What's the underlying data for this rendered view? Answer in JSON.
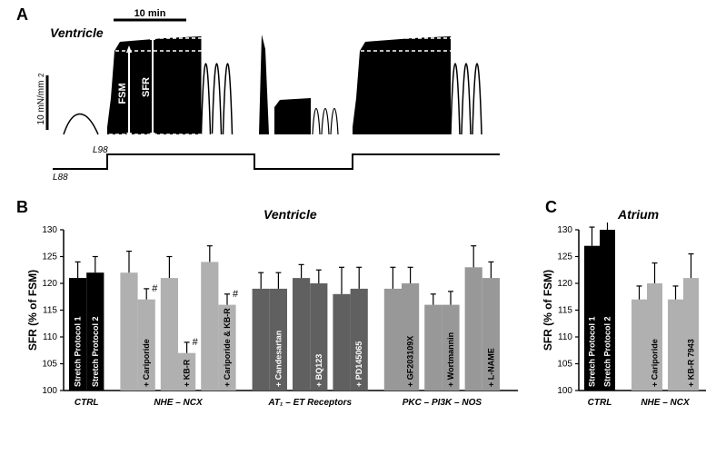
{
  "panelA": {
    "label": "A",
    "title": "Ventricle",
    "scalebar_time": "10 min",
    "scalebar_force": "10 mN/mm²",
    "trace_color": "#000000",
    "fsm_label": "FSM",
    "sfr_label": "SFR",
    "length_labels": {
      "l98": "L98",
      "l88": "L88"
    },
    "background": "#ffffff"
  },
  "panelB": {
    "label": "B",
    "title": "Ventricle",
    "y_label": "SFR (% of FSM)",
    "ylim": [
      100,
      130
    ],
    "ytick_step": 5,
    "yticks": [
      100,
      105,
      110,
      115,
      120,
      125,
      130
    ],
    "axis_color": "#000000",
    "label_fontsize": 12,
    "tick_fontsize": 10,
    "groups": [
      {
        "name": "CTRL",
        "bars": [
          {
            "label": "Stretch Protocol 1",
            "value": 121,
            "err": 3.0,
            "color": "#000000",
            "text_color": "#ffffff",
            "sig": ""
          },
          {
            "label": "Stretch Protocol 2",
            "value": 122,
            "err": 3.0,
            "color": "#000000",
            "text_color": "#ffffff",
            "sig": ""
          }
        ]
      },
      {
        "name": "NHE – NCX",
        "bars": [
          {
            "label": "",
            "value": 122,
            "err": 4.0,
            "color": "#b0b0b0",
            "text_color": "#000000",
            "sig": ""
          },
          {
            "label": "+ Cariporide",
            "value": 117,
            "err": 2.0,
            "color": "#b0b0b0",
            "text_color": "#000000",
            "sig": "#"
          },
          {
            "label": "",
            "value": 121,
            "err": 4.0,
            "color": "#b0b0b0",
            "text_color": "#000000",
            "sig": ""
          },
          {
            "label": "+ KB-R",
            "value": 107,
            "err": 2.0,
            "color": "#b0b0b0",
            "text_color": "#000000",
            "sig": "#"
          },
          {
            "label": "",
            "value": 124,
            "err": 3.0,
            "color": "#b0b0b0",
            "text_color": "#000000",
            "sig": ""
          },
          {
            "label": "+ Cariporide & KB-R",
            "value": 116,
            "err": 2.0,
            "color": "#b0b0b0",
            "text_color": "#000000",
            "sig": "#"
          }
        ]
      },
      {
        "name": "AT₁ – ET Receptors",
        "bars": [
          {
            "label": "",
            "value": 119,
            "err": 3.0,
            "color": "#606060",
            "text_color": "#ffffff",
            "sig": ""
          },
          {
            "label": "+ Candesartan",
            "value": 119,
            "err": 3.0,
            "color": "#606060",
            "text_color": "#ffffff",
            "sig": ""
          },
          {
            "label": "",
            "value": 121,
            "err": 2.5,
            "color": "#606060",
            "text_color": "#ffffff",
            "sig": ""
          },
          {
            "label": "+ BQ123",
            "value": 120,
            "err": 2.5,
            "color": "#606060",
            "text_color": "#ffffff",
            "sig": ""
          },
          {
            "label": "",
            "value": 118,
            "err": 5.0,
            "color": "#606060",
            "text_color": "#ffffff",
            "sig": ""
          },
          {
            "label": "+ PD145065",
            "value": 119,
            "err": 4.0,
            "color": "#606060",
            "text_color": "#ffffff",
            "sig": ""
          }
        ]
      },
      {
        "name": "PKC – PI3K – NOS",
        "bars": [
          {
            "label": "",
            "value": 119,
            "err": 4.0,
            "color": "#989898",
            "text_color": "#000000",
            "sig": ""
          },
          {
            "label": "+ GF203109X",
            "value": 120,
            "err": 3.0,
            "color": "#989898",
            "text_color": "#000000",
            "sig": ""
          },
          {
            "label": "",
            "value": 116,
            "err": 2.0,
            "color": "#989898",
            "text_color": "#000000",
            "sig": ""
          },
          {
            "label": "+ Wortmannin",
            "value": 116,
            "err": 2.5,
            "color": "#989898",
            "text_color": "#000000",
            "sig": ""
          },
          {
            "label": "",
            "value": 123,
            "err": 4.0,
            "color": "#989898",
            "text_color": "#000000",
            "sig": ""
          },
          {
            "label": "+ L-NAME",
            "value": 121,
            "err": 3.0,
            "color": "#989898",
            "text_color": "#000000",
            "sig": ""
          }
        ]
      }
    ]
  },
  "panelC": {
    "label": "C",
    "title": "Atrium",
    "y_label": "SFR (% of FSM)",
    "ylim": [
      100,
      130
    ],
    "ytick_step": 5,
    "yticks": [
      100,
      105,
      110,
      115,
      120,
      125,
      130
    ],
    "axis_color": "#000000",
    "label_fontsize": 12,
    "tick_fontsize": 10,
    "groups": [
      {
        "name": "CTRL",
        "bars": [
          {
            "label": "Stretch Protocol 1",
            "value": 127,
            "err": 3.5,
            "color": "#000000",
            "text_color": "#ffffff",
            "sig": ""
          },
          {
            "label": "Stretch Protocol 2",
            "value": 130,
            "err": 5.0,
            "color": "#000000",
            "text_color": "#ffffff",
            "sig": ""
          }
        ]
      },
      {
        "name": "NHE – NCX",
        "bars": [
          {
            "label": "",
            "value": 117,
            "err": 2.5,
            "color": "#b0b0b0",
            "text_color": "#000000",
            "sig": ""
          },
          {
            "label": "+ Cariporide",
            "value": 120,
            "err": 3.8,
            "color": "#b0b0b0",
            "text_color": "#000000",
            "sig": ""
          },
          {
            "label": "",
            "value": 117,
            "err": 2.5,
            "color": "#b0b0b0",
            "text_color": "#000000",
            "sig": ""
          },
          {
            "label": "+ KB-R 7943",
            "value": 121,
            "err": 4.5,
            "color": "#b0b0b0",
            "text_color": "#000000",
            "sig": ""
          }
        ]
      }
    ]
  }
}
